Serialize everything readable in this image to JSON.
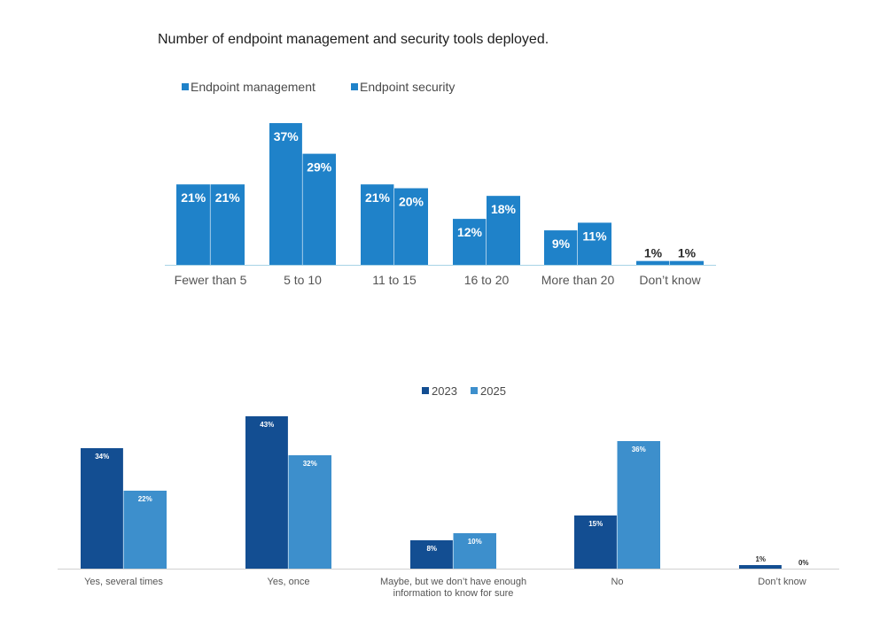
{
  "chart_data": [
    {
      "type": "bar",
      "title": "Number of endpoint management and security tools deployed.",
      "categories": [
        "Fewer than 5",
        "5 to 10",
        "11 to 15",
        "16 to 20",
        "More than 20",
        "Don’t know"
      ],
      "series": [
        {
          "name": "Endpoint management",
          "values": [
            21,
            37,
            21,
            12,
            9,
            1
          ],
          "labels": [
            "21%",
            "37%",
            "21%",
            "12%",
            "9%",
            "1%"
          ]
        },
        {
          "name": "Endpoint security",
          "values": [
            21,
            29,
            20,
            18,
            11,
            1
          ],
          "labels": [
            "21%",
            "29%",
            "20%",
            "18%",
            "11%",
            "1%"
          ]
        }
      ],
      "ylim": [
        0,
        37
      ],
      "legend": "top-left",
      "colors": {
        "series": [
          "#1f82c9",
          "#1f82c9"
        ],
        "axis": "#a8d4e6"
      }
    },
    {
      "type": "bar",
      "title": "",
      "categories": [
        "Yes, several times",
        "Yes, once",
        "Maybe, but we don’t have enough information to know for sure",
        "No",
        "Don’t know"
      ],
      "series": [
        {
          "name": "2023",
          "values": [
            34,
            43,
            8,
            15,
            1
          ],
          "labels": [
            "34%",
            "43%",
            "8%",
            "15%",
            "1%"
          ]
        },
        {
          "name": "2025",
          "values": [
            22,
            32,
            10,
            36,
            0
          ],
          "labels": [
            "22%",
            "32%",
            "10%",
            "36%",
            "0%"
          ]
        }
      ],
      "ylim": [
        0,
        43
      ],
      "legend": "top-center",
      "colors": {
        "series": [
          "#134e92",
          "#3d8fcc"
        ],
        "axis": "#d0d0d0"
      }
    }
  ]
}
